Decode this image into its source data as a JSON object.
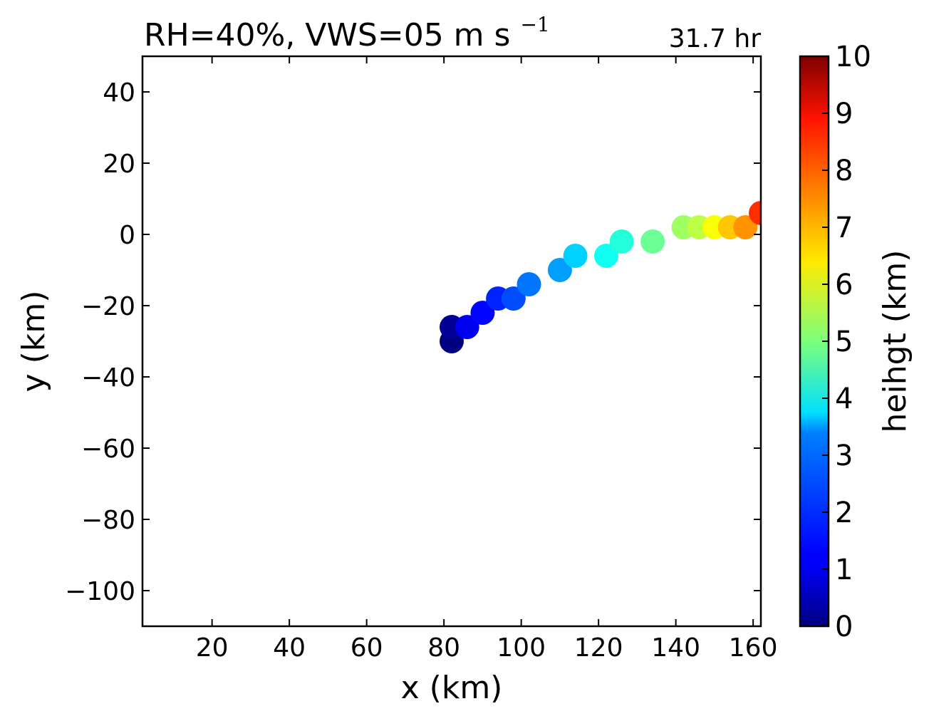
{
  "chart_data": {
    "type": "scatter",
    "title": "RH=40%, VWS=05 m s",
    "title_superscript": "−1",
    "annotation": "31.7 hr",
    "annotation_color": "#0000ff",
    "xlabel": "x (km)",
    "ylabel": "y (km)",
    "xlim": [
      2,
      162
    ],
    "ylim": [
      -110,
      50
    ],
    "xticks": [
      20,
      40,
      60,
      80,
      100,
      120,
      140,
      160
    ],
    "xtick_labels": [
      "20",
      "40",
      "60",
      "80",
      "100",
      "120",
      "140",
      "160"
    ],
    "yticks": [
      40,
      20,
      0,
      -20,
      -40,
      -60,
      -80,
      -100
    ],
    "ytick_labels": [
      "40",
      "20",
      "0",
      "−20",
      "−40",
      "−60",
      "−80",
      "−100"
    ],
    "grid": false,
    "colormap": "jet",
    "colorbar": {
      "label": "heihgt (km)",
      "range": [
        0,
        10
      ],
      "ticks": [
        0,
        1,
        2,
        3,
        4,
        5,
        6,
        7,
        8,
        9,
        10
      ],
      "tick_labels": [
        "0",
        "1",
        "2",
        "3",
        "4",
        "5",
        "6",
        "7",
        "8",
        "9",
        "10"
      ]
    },
    "points": [
      {
        "x": 82,
        "y": -30,
        "height": 0.0
      },
      {
        "x": 82,
        "y": -26,
        "height": 0.2
      },
      {
        "x": 86,
        "y": -26,
        "height": 1.1
      },
      {
        "x": 90,
        "y": -22,
        "height": 1.3
      },
      {
        "x": 94,
        "y": -18,
        "height": 1.6
      },
      {
        "x": 98,
        "y": -18,
        "height": 2.0
      },
      {
        "x": 102,
        "y": -14,
        "height": 2.4
      },
      {
        "x": 110,
        "y": -10,
        "height": 2.8
      },
      {
        "x": 114,
        "y": -6,
        "height": 3.3
      },
      {
        "x": 122,
        "y": -6,
        "height": 3.9
      },
      {
        "x": 126,
        "y": -2,
        "height": 4.1
      },
      {
        "x": 134,
        "y": -2,
        "height": 4.8
      },
      {
        "x": 142,
        "y": 2,
        "height": 5.3
      },
      {
        "x": 146,
        "y": 2,
        "height": 5.6
      },
      {
        "x": 150,
        "y": 2,
        "height": 6.2
      },
      {
        "x": 154,
        "y": 2,
        "height": 6.8
      },
      {
        "x": 158,
        "y": 2,
        "height": 7.3
      },
      {
        "x": 162,
        "y": 6,
        "height": 8.3
      }
    ]
  }
}
